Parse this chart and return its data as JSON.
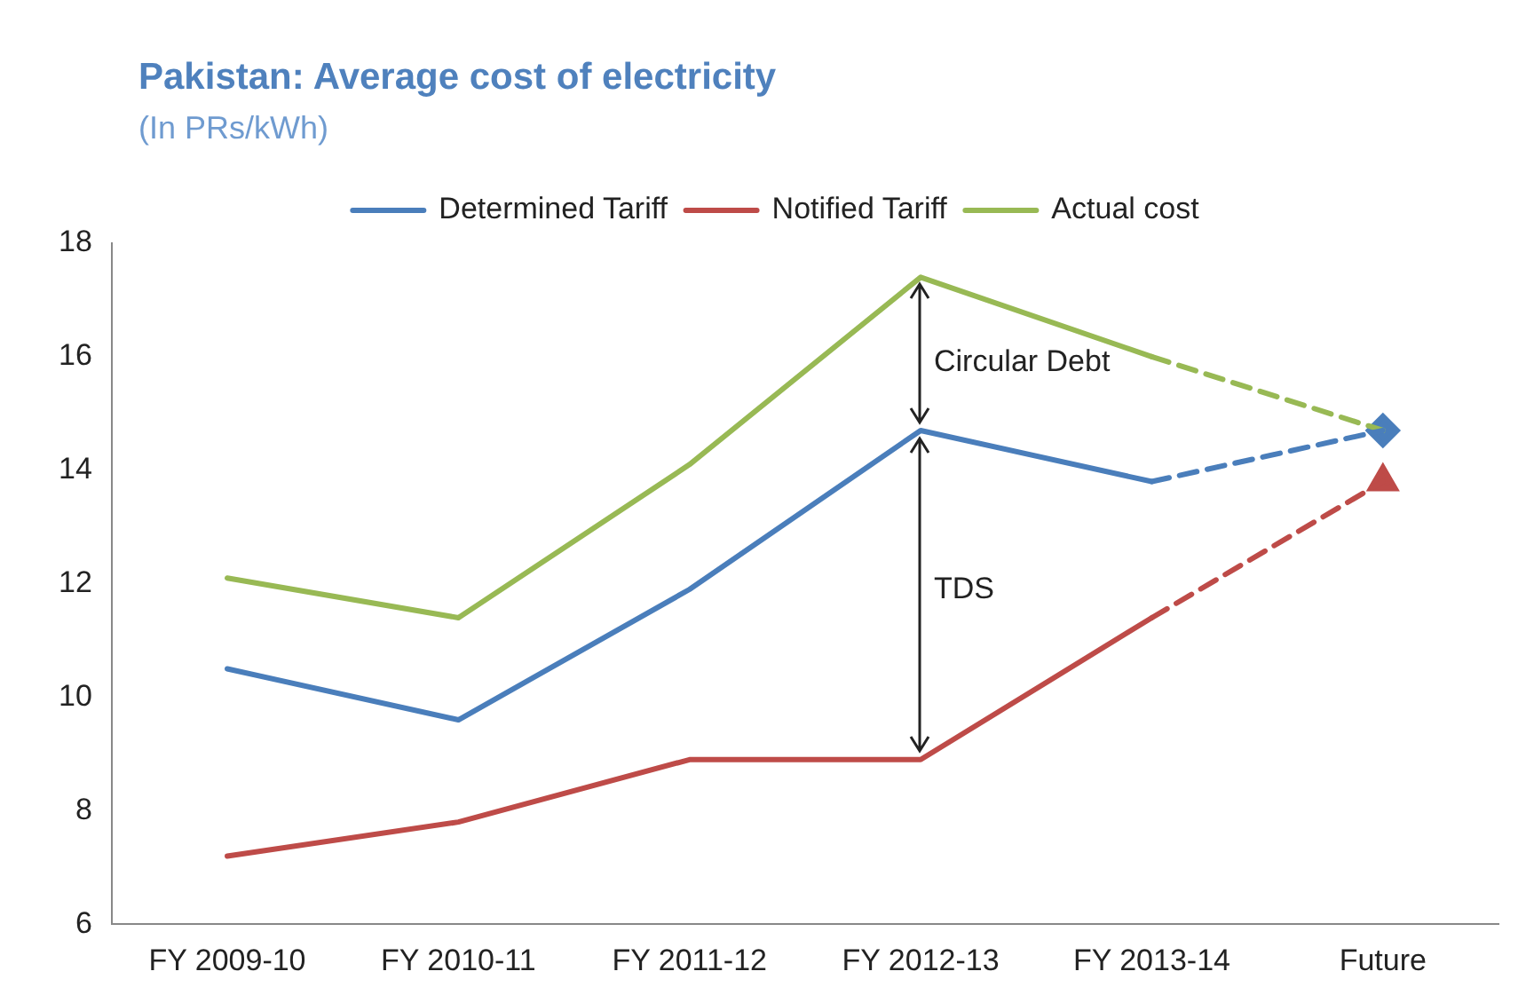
{
  "chart_data": {
    "type": "line",
    "title": "Pakistan: Average cost of electricity",
    "subtitle": "(In PRs/kWh)",
    "categories": [
      "FY 2009-10",
      "FY 2010-11",
      "FY 2011-12",
      "FY 2012-13",
      "FY 2013-14",
      "Future"
    ],
    "ylim": [
      6,
      18
    ],
    "yticks": [
      6,
      8,
      10,
      12,
      14,
      16,
      18
    ],
    "grid": false,
    "legend": "top",
    "marker": "none",
    "line_style": "solid",
    "series": [
      {
        "name": "Determined Tariff",
        "color": "#4a7ebb",
        "values": [
          10.5,
          9.6,
          11.9,
          14.7,
          13.8,
          null
        ]
      },
      {
        "name": "Notified Tariff",
        "color": "#be4b48",
        "values": [
          7.2,
          7.8,
          8.9,
          8.9,
          11.4,
          null
        ]
      },
      {
        "name": "Actual cost",
        "color": "#98b954",
        "values": [
          12.1,
          11.4,
          14.1,
          17.4,
          16.0,
          null
        ]
      },
      {
        "color": "#4a7ebb",
        "line_style": "dashed",
        "values": [
          null,
          null,
          null,
          null,
          13.8,
          14.7
        ]
      },
      {
        "color": "#be4b48",
        "line_style": "dashed",
        "values": [
          null,
          null,
          null,
          null,
          11.4,
          13.8
        ]
      },
      {
        "color": "#98b954",
        "line_style": "dashed",
        "values": [
          null,
          null,
          null,
          null,
          16.0,
          14.7
        ]
      },
      {
        "type": "scatter",
        "color": "#4a7ebb",
        "marker": "diamond",
        "x": [
          "Future"
        ],
        "values": [
          14.7
        ]
      },
      {
        "type": "scatter",
        "color": "#be4b48",
        "marker": "triangle",
        "x": [
          "Future"
        ],
        "values": [
          13.8
        ]
      }
    ],
    "annotations": [
      "Circular Debt",
      "TDS"
    ]
  }
}
